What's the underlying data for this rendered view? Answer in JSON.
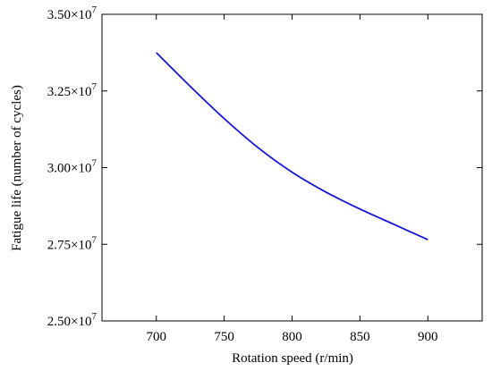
{
  "chart_data": {
    "type": "line",
    "title": "",
    "xlabel": "Rotation speed (r/min)",
    "ylabel": "Fatigue life (number of cycles)",
    "xlim": [
      660,
      940
    ],
    "ylim": [
      25000000,
      35000000
    ],
    "x_ticks": [
      700,
      750,
      800,
      850,
      900
    ],
    "x_tick_labels": [
      "700",
      "750",
      "800",
      "850",
      "900"
    ],
    "y_ticks": [
      25000000,
      27500000,
      30000000,
      32500000,
      35000000
    ],
    "y_tick_labels": [
      {
        "mantissa": "2.50",
        "base": "×10",
        "exp": "7"
      },
      {
        "mantissa": "2.75",
        "base": "×10",
        "exp": "7"
      },
      {
        "mantissa": "3.00",
        "base": "×10",
        "exp": "7"
      },
      {
        "mantissa": "3.25",
        "base": "×10",
        "exp": "7"
      },
      {
        "mantissa": "3.50",
        "base": "×10",
        "exp": "7"
      }
    ],
    "grid": false,
    "series": [
      {
        "color": "#1515d6",
        "x": [
          700,
          725,
          750,
          775,
          800,
          825,
          850,
          875,
          900
        ],
        "y": [
          33750000,
          32650000,
          31600000,
          30650000,
          29850000,
          29200000,
          28650000,
          28150000,
          27650000
        ]
      }
    ]
  }
}
